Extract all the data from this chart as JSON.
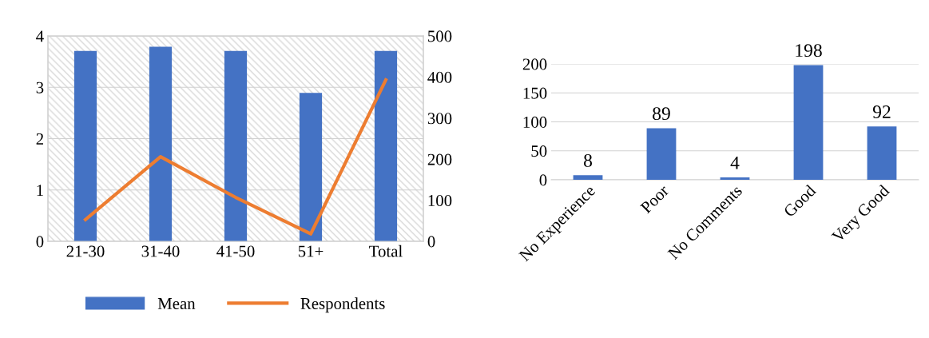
{
  "chart_data": [
    {
      "type": "bar",
      "categories": [
        "21-30",
        "31-40",
        "41-50",
        "51+",
        "Total"
      ],
      "series": [
        {
          "name": "Mean",
          "color": "#4472c4",
          "values": [
            3.71,
            3.79,
            3.71,
            2.89,
            3.71
          ]
        },
        {
          "name": "Respondents",
          "type": "line",
          "axis": "y2",
          "color": "#ed7d31",
          "values": [
            53,
            206,
            107,
            18,
            393
          ]
        }
      ],
      "ylim": [
        0,
        4
      ],
      "yticks": [
        0,
        1,
        2,
        3,
        4
      ],
      "y2lim": [
        0,
        500
      ],
      "y2ticks": [
        0,
        100,
        200,
        300,
        400,
        500
      ],
      "grid": true,
      "legend": "bottom",
      "marker": "none"
    },
    {
      "type": "bar",
      "categories": [
        "No Experience",
        "Poor",
        "No Comments",
        "Good",
        "Very Good"
      ],
      "values": [
        8,
        89,
        4,
        198,
        92
      ],
      "color": "#4472c4",
      "ylim": [
        0,
        200
      ],
      "yticks": [
        0,
        50,
        100,
        150,
        200
      ],
      "grid": "y",
      "data_labels": true
    }
  ]
}
